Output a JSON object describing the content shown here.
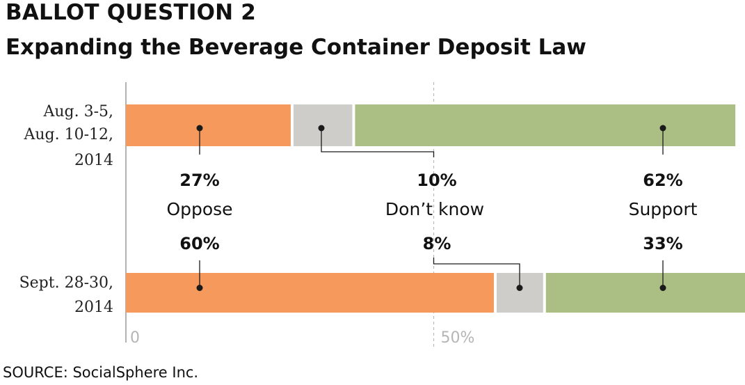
{
  "header": {
    "kicker": "BALLOT QUESTION 2",
    "title": "Expanding the Beverage Container Deposit Law"
  },
  "source": "SOURCE: SocialSphere Inc.",
  "colors": {
    "oppose": "#f59a5c",
    "dont_know": "#cfcdc9",
    "support": "#abbf84",
    "dot": "#1a1a1a",
    "axis": "#999999",
    "midline": "#b8b8b8"
  },
  "chart_data": {
    "type": "bar",
    "orientation": "horizontal",
    "stacked": true,
    "title": "Expanding the Beverage Container Deposit Law",
    "categories": [
      "Aug. 3-5, Aug. 10-12, 2014",
      "Sept. 28-30, 2014"
    ],
    "category_lines": [
      [
        "Aug. 3-5,",
        "Aug. 10-12,",
        "2014"
      ],
      [
        "Sept. 28-30,",
        "2014"
      ]
    ],
    "series": [
      {
        "name": "Oppose",
        "values": [
          27,
          60
        ],
        "labels": [
          "27%",
          "60%"
        ]
      },
      {
        "name": "Don’t know",
        "values": [
          10,
          8
        ],
        "labels": [
          "10%",
          "8%"
        ]
      },
      {
        "name": "Support",
        "values": [
          62,
          33
        ],
        "labels": [
          "62%",
          "33%"
        ]
      }
    ],
    "xlim": [
      0,
      100
    ],
    "x_ticks": [
      {
        "value": 0,
        "label": "0"
      },
      {
        "value": 50,
        "label": "50%"
      }
    ],
    "midline": 50
  }
}
